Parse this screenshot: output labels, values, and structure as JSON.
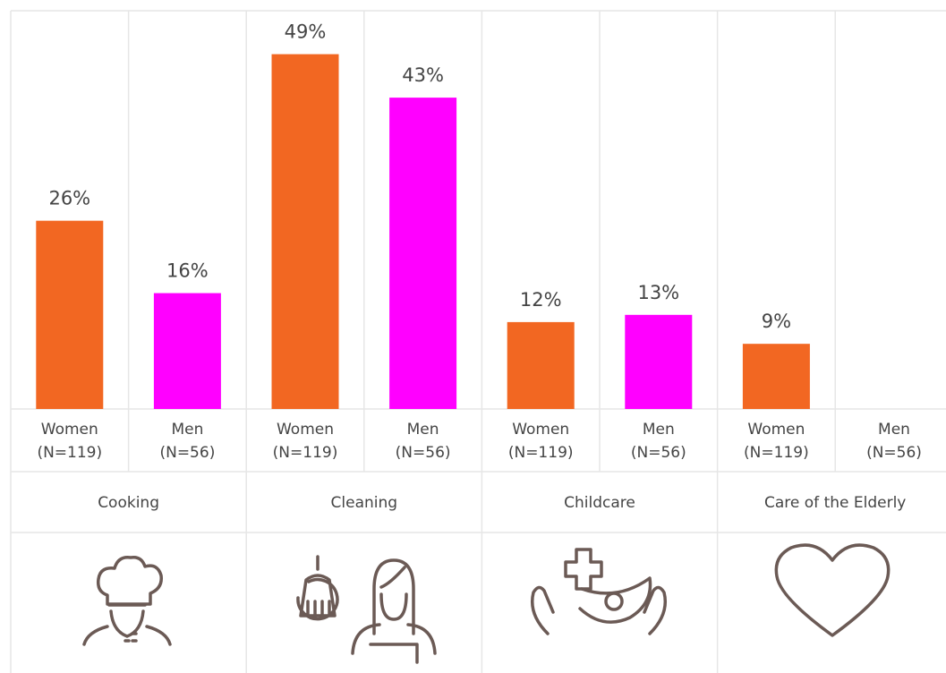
{
  "chart_data": {
    "type": "bar",
    "categories": [
      "Cooking",
      "Cleaning",
      "Childcare",
      "Care of the Elderly"
    ],
    "series": [
      {
        "name": "Women",
        "group_size": "(N=119)",
        "color": "#f26722",
        "values": [
          26,
          49,
          12,
          9
        ],
        "value_labels": [
          "26%",
          "49%",
          "12%",
          "9%"
        ]
      },
      {
        "name": "Men",
        "group_size": "(N=56)",
        "color": "#ff00ff",
        "values": [
          16,
          43,
          13,
          null
        ],
        "value_labels": [
          "16%",
          "43%",
          "13%",
          null
        ]
      }
    ],
    "ylim": [
      0,
      55
    ]
  }
}
